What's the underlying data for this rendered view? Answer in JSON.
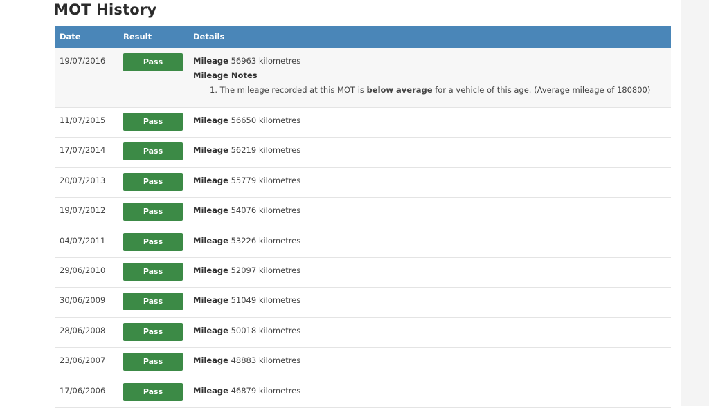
{
  "title": "MOT History",
  "table": {
    "headers": [
      "Date",
      "Result",
      "Details"
    ],
    "mileage_label": "Mileage",
    "unit": "kilometres",
    "rows": [
      {
        "date": "19/07/2016",
        "result": "Pass",
        "mileage": "56963",
        "notes_title": "Mileage Notes",
        "note": {
          "prefix": "1. The mileage recorded at this MOT is ",
          "bold": "below average",
          "suffix": " for a vehicle of this age. (Average mileage of 180800)"
        }
      },
      {
        "date": "11/07/2015",
        "result": "Pass",
        "mileage": "56650"
      },
      {
        "date": "17/07/2014",
        "result": "Pass",
        "mileage": "56219"
      },
      {
        "date": "20/07/2013",
        "result": "Pass",
        "mileage": "55779"
      },
      {
        "date": "19/07/2012",
        "result": "Pass",
        "mileage": "54076"
      },
      {
        "date": "04/07/2011",
        "result": "Pass",
        "mileage": "53226"
      },
      {
        "date": "29/06/2010",
        "result": "Pass",
        "mileage": "52097"
      },
      {
        "date": "30/06/2009",
        "result": "Pass",
        "mileage": "51049"
      },
      {
        "date": "28/06/2008",
        "result": "Pass",
        "mileage": "50018"
      },
      {
        "date": "23/06/2007",
        "result": "Pass",
        "mileage": "48883"
      },
      {
        "date": "17/06/2006",
        "result": "Pass",
        "mileage": "46879"
      }
    ]
  },
  "colors": {
    "header": "#4a86b8",
    "pass": "#3c8a46"
  }
}
